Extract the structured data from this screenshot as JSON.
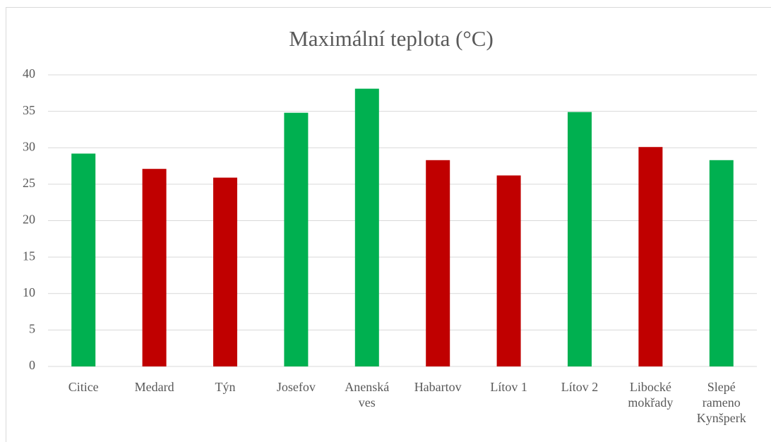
{
  "chart_data": {
    "type": "bar",
    "title": "Maximální teplota (°C)",
    "categories": [
      "Citice",
      "Medard",
      "Týn",
      "Josefov",
      "Anenská ves",
      "Habartov",
      "Lítov 1",
      "Lítov 2",
      "Libocké mokřady",
      "Slepé rameno Kynšperk"
    ],
    "values": [
      29.2,
      27.1,
      25.9,
      34.8,
      38.1,
      28.3,
      26.2,
      34.9,
      30.1,
      28.3
    ],
    "colors": [
      "#00b050",
      "#c00000",
      "#c00000",
      "#00b050",
      "#00b050",
      "#c00000",
      "#c00000",
      "#00b050",
      "#c00000",
      "#00b050"
    ],
    "ylim": [
      0,
      40
    ],
    "yticks": [
      0,
      5,
      10,
      15,
      20,
      25,
      30,
      35,
      40
    ],
    "grid": true
  }
}
